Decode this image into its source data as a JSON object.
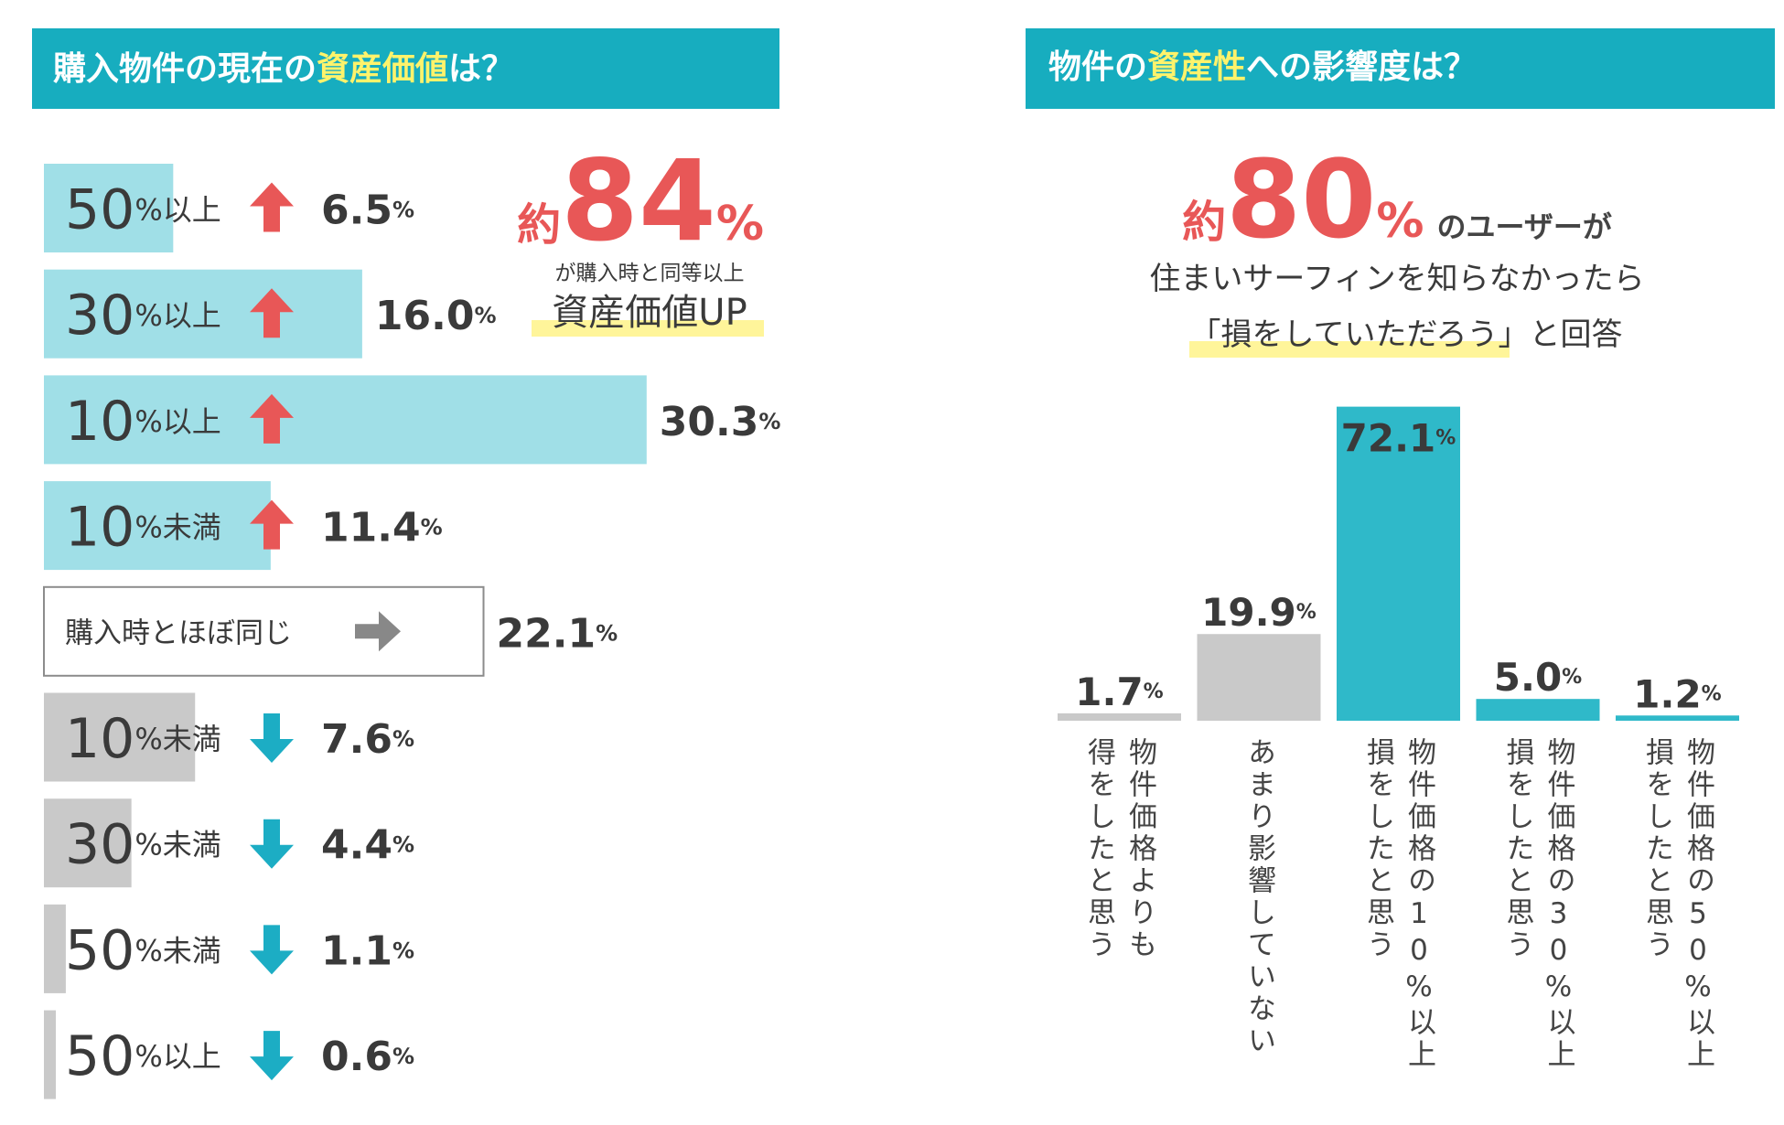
{
  "chart_data": [
    {
      "type": "hbar",
      "title": [
        "購入物件の現在の",
        "資産価値",
        "は？"
      ],
      "annotation": {
        "prefix": "約",
        "number": 84,
        "unit": "%",
        "line1": "が購入時と同等以上",
        "line2": "資産価値UP"
      },
      "categories": [
        "50%以上",
        "30%以上",
        "10%以上",
        "10%未満",
        "購入時とほぼ同じ",
        "10%未満",
        "30%未満",
        "50%未満",
        "50%以上"
      ],
      "values": [
        6.5,
        16.0,
        30.3,
        11.4,
        22.1,
        7.6,
        4.4,
        1.1,
        0.6
      ],
      "value_labels": [
        "6.5%",
        "16.0%",
        "30.3%",
        "11.4%",
        "22.1%",
        "7.6%",
        "4.4%",
        "1.1%",
        "0.6%"
      ],
      "bar_colors": [
        "#a0dfe7",
        "#a0dfe7",
        "#a0dfe7",
        "#a0dfe7",
        "#ffffff",
        "#c9c9c9",
        "#c9c9c9",
        "#c9c9c9",
        "#c9c9c9"
      ],
      "bar_outline": [
        null,
        null,
        null,
        null,
        "#8c8c8c",
        null,
        null,
        null,
        null
      ],
      "label_colors": [
        "#e85757",
        "#e85757",
        "#e85757",
        "#e85757",
        "#888888",
        "#1cadc4",
        "#1cadc4",
        "#1cadc4",
        "#1cadc4"
      ],
      "arrows": [
        "up",
        "up",
        "up",
        "up",
        "right",
        "down",
        "down",
        "down",
        "down"
      ],
      "xlim": [
        0,
        35
      ]
    },
    {
      "type": "column",
      "title": [
        "物件の",
        "資産性",
        "への影響度は？"
      ],
      "annotation": {
        "prefix": "約",
        "number": 80,
        "unit": "%",
        "line1": "のユーザーが",
        "line2": "住まいサーフィンを知らなかったら",
        "line3": [
          "「",
          "損をしていただろう",
          "」と回答"
        ]
      },
      "categories": [
        [
          "物件価格よりも",
          "得をしたと思う"
        ],
        [
          "あまり影響していない"
        ],
        [
          "物件価格の10%以上",
          "損をしたと思う"
        ],
        [
          "物件価格の30%以上",
          "損をしたと思う"
        ],
        [
          "物件価格の50%以上",
          "損をしたと思う"
        ]
      ],
      "values": [
        1.7,
        19.9,
        72.1,
        5.0,
        1.2
      ],
      "value_labels": [
        "1.7%",
        "19.9%",
        "72.1%",
        "5.0%",
        "1.2%"
      ],
      "bar_colors": [
        "#c9c9c9",
        "#c9c9c9",
        "#2fb9c9",
        "#2fb9c9",
        "#2fb9c9"
      ],
      "label_colors": [
        "#c9c9c9",
        "#c9c9c9",
        "#fff36b",
        "#2fb9c9",
        "#2fb9c9"
      ],
      "ylim": [
        0,
        80
      ]
    }
  ]
}
